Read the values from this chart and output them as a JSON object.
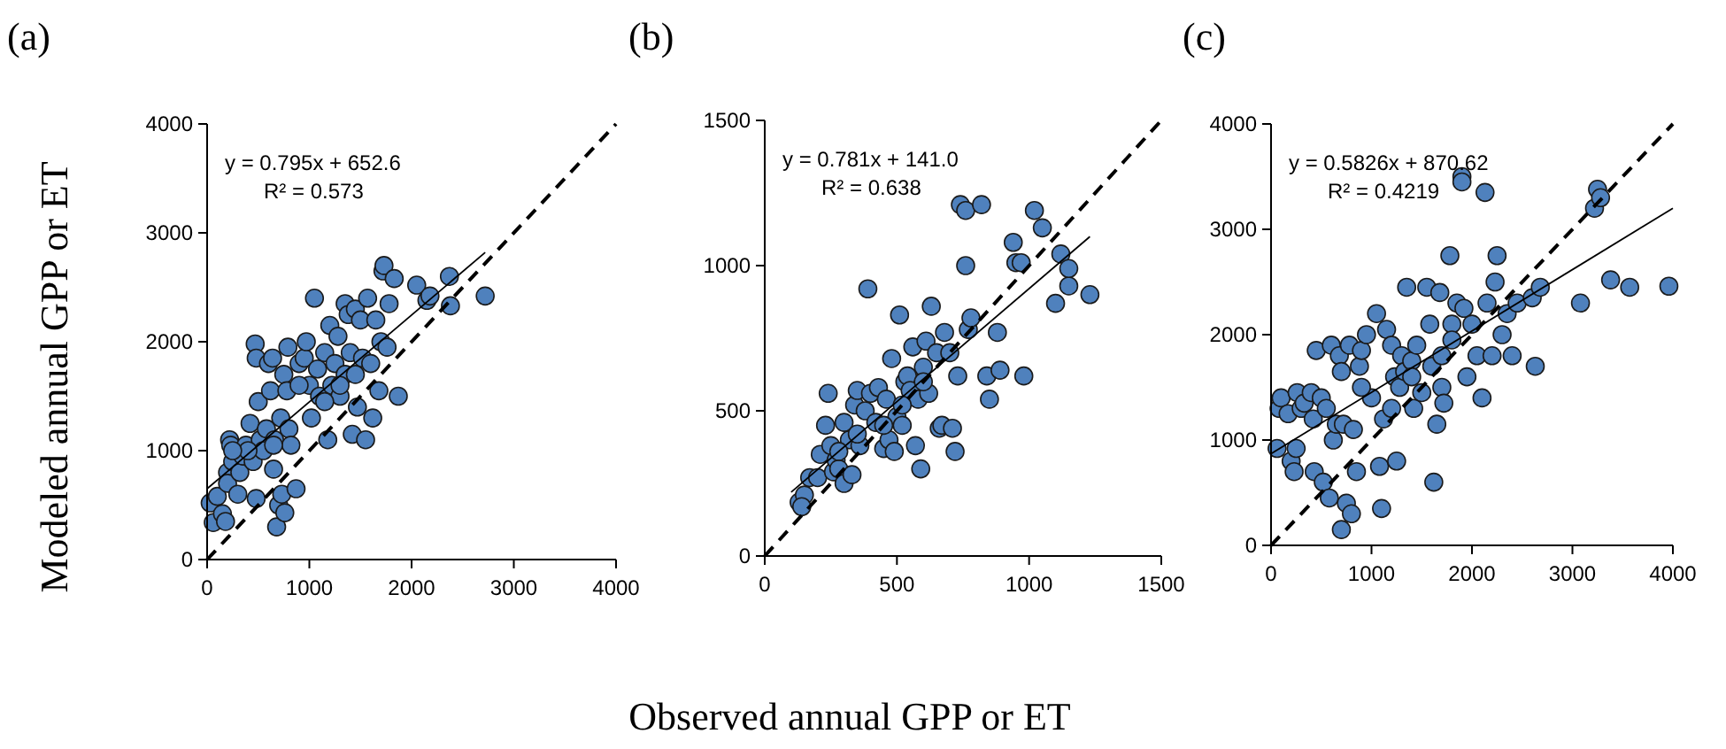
{
  "chart_data": [
    {
      "type": "scatter",
      "title": "(a)",
      "ylabel": "Modeled annual GPP or ET",
      "xlim": [
        0,
        4000
      ],
      "ylim": [
        0,
        4000
      ],
      "xticks": [
        0,
        1000,
        2000,
        3000,
        4000
      ],
      "yticks": [
        0,
        1000,
        2000,
        3000,
        4000
      ],
      "grid": false,
      "annotations": [
        "y = 0.795x + 652.6",
        "R² = 0.573"
      ],
      "series": [
        {
          "type": "scatter",
          "color": "#4f81bd",
          "marker": "circle",
          "x": [
            30,
            100,
            60,
            150,
            180,
            200,
            220,
            230,
            250,
            200,
            300,
            320,
            350,
            380,
            420,
            450,
            470,
            480,
            500,
            480,
            520,
            550,
            580,
            600,
            620,
            640,
            650,
            660,
            680,
            700,
            720,
            730,
            750,
            760,
            780,
            790,
            800,
            820,
            870,
            900,
            950,
            970,
            1000,
            1020,
            1050,
            1080,
            1100,
            1150,
            1180,
            1200,
            1220,
            1250,
            1280,
            1300,
            1350,
            1350,
            1380,
            1400,
            1420,
            1450,
            1450,
            1470,
            1500,
            1520,
            1550,
            1570,
            1600,
            1620,
            1650,
            1680,
            1700,
            1720,
            1730,
            1760,
            1780,
            1830,
            1870,
            2050,
            2150,
            2180,
            2370,
            2380,
            2720,
            1300,
            1150,
            900,
            650,
            400,
            250
          ],
          "values": [
            520,
            580,
            340,
            420,
            350,
            800,
            1100,
            1050,
            900,
            700,
            600,
            800,
            950,
            1050,
            1250,
            900,
            1980,
            1850,
            1450,
            560,
            1100,
            1000,
            1200,
            1800,
            1550,
            1850,
            830,
            1100,
            300,
            500,
            1300,
            600,
            1700,
            430,
            1550,
            1950,
            1200,
            1050,
            650,
            1800,
            1850,
            2000,
            1600,
            1300,
            2400,
            1750,
            1500,
            1900,
            1100,
            2150,
            1600,
            1800,
            2050,
            1500,
            2350,
            1700,
            2250,
            1900,
            1150,
            2300,
            1700,
            1400,
            2200,
            1850,
            1100,
            2400,
            1800,
            1300,
            2200,
            1550,
            2000,
            2650,
            2700,
            1950,
            2350,
            2580,
            1500,
            2520,
            2380,
            2420,
            2600,
            2330,
            2420,
            1600,
            1450,
            1600,
            1050,
            1000,
            1000
          ]
        },
        {
          "type": "line",
          "color": "#000000",
          "line_style": "solid",
          "x": [
            0,
            2720
          ],
          "values": [
            650,
            2820
          ]
        },
        {
          "type": "line",
          "color": "#000000",
          "line_style": "dashed",
          "x": [
            0,
            4000
          ],
          "values": [
            0,
            4000
          ]
        }
      ]
    },
    {
      "type": "scatter",
      "title": "(b)",
      "xlabel": "Observed annual GPP or ET",
      "xlim": [
        0,
        1500
      ],
      "ylim": [
        0,
        1500
      ],
      "xticks": [
        0,
        500,
        1000,
        1500
      ],
      "yticks": [
        0,
        500,
        1000,
        1500
      ],
      "grid": false,
      "annotations": [
        "y = 0.781x + 141.0",
        "R² = 0.638"
      ],
      "series": [
        {
          "type": "scatter",
          "color": "#4f81bd",
          "marker": "circle",
          "x": [
            130,
            150,
            140,
            170,
            200,
            210,
            230,
            240,
            250,
            260,
            270,
            280,
            300,
            300,
            320,
            330,
            340,
            350,
            360,
            380,
            390,
            400,
            420,
            430,
            450,
            460,
            470,
            480,
            490,
            500,
            510,
            520,
            530,
            540,
            550,
            560,
            570,
            580,
            590,
            600,
            610,
            620,
            630,
            650,
            660,
            670,
            680,
            700,
            710,
            720,
            730,
            740,
            760,
            760,
            770,
            780,
            820,
            840,
            850,
            880,
            890,
            980,
            940,
            950,
            970,
            1020,
            1050,
            1100,
            1120,
            1150,
            1150,
            1230,
            450,
            350,
            280,
            520,
            600
          ],
          "values": [
            185,
            210,
            170,
            270,
            270,
            350,
            450,
            560,
            380,
            290,
            330,
            300,
            250,
            460,
            400,
            280,
            520,
            570,
            380,
            500,
            920,
            560,
            460,
            580,
            370,
            540,
            400,
            680,
            360,
            480,
            830,
            450,
            600,
            620,
            570,
            720,
            380,
            540,
            300,
            650,
            740,
            560,
            860,
            700,
            440,
            450,
            770,
            700,
            440,
            360,
            620,
            1210,
            1190,
            1000,
            780,
            820,
            1210,
            620,
            540,
            770,
            640,
            620,
            1080,
            1010,
            1010,
            1190,
            1130,
            870,
            1040,
            930,
            990,
            900,
            450,
            420,
            360,
            520,
            600
          ]
        },
        {
          "type": "line",
          "color": "#000000",
          "line_style": "solid",
          "x": [
            100,
            1230
          ],
          "values": [
            220,
            1100
          ]
        },
        {
          "type": "line",
          "color": "#000000",
          "line_style": "dashed",
          "x": [
            0,
            1500
          ],
          "values": [
            0,
            1500
          ]
        }
      ]
    },
    {
      "type": "scatter",
      "title": "(c)",
      "xlim": [
        0,
        4000
      ],
      "ylim": [
        0,
        4000
      ],
      "xticks": [
        0,
        1000,
        2000,
        3000,
        4000
      ],
      "yticks": [
        0,
        1000,
        2000,
        3000,
        4000
      ],
      "grid": false,
      "annotations": [
        "y = 0.5826x + 870.62",
        "R² = 0.4219"
      ],
      "series": [
        {
          "type": "scatter",
          "color": "#4f81bd",
          "marker": "circle",
          "x": [
            60,
            80,
            100,
            170,
            200,
            230,
            250,
            260,
            300,
            330,
            400,
            420,
            430,
            450,
            500,
            520,
            550,
            580,
            600,
            620,
            650,
            680,
            700,
            700,
            720,
            750,
            780,
            800,
            820,
            850,
            880,
            900,
            950,
            1000,
            1050,
            1080,
            1100,
            1120,
            1150,
            1200,
            1230,
            1250,
            1280,
            1300,
            1330,
            1350,
            1400,
            1420,
            1450,
            1500,
            1550,
            1580,
            1600,
            1620,
            1650,
            1680,
            1700,
            1720,
            1780,
            1800,
            1850,
            1900,
            1900,
            1920,
            1950,
            2000,
            2050,
            2100,
            2130,
            2150,
            2200,
            2230,
            2250,
            2300,
            2350,
            2400,
            2450,
            2600,
            2630,
            2680,
            3080,
            3220,
            3250,
            3280,
            3380,
            3570,
            3960,
            1700,
            1800,
            1400,
            1200,
            900
          ],
          "values": [
            920,
            1300,
            1400,
            1250,
            800,
            700,
            920,
            1450,
            1300,
            1350,
            1450,
            1200,
            700,
            1850,
            1400,
            600,
            1300,
            450,
            1900,
            1000,
            1150,
            1800,
            1650,
            150,
            1150,
            400,
            1900,
            300,
            1100,
            700,
            1700,
            1850,
            2000,
            1400,
            2200,
            750,
            350,
            1200,
            2050,
            1900,
            1600,
            800,
            1500,
            1800,
            1650,
            2450,
            1750,
            1300,
            1900,
            1450,
            2450,
            2100,
            1700,
            600,
            1150,
            2400,
            1500,
            1350,
            2750,
            2100,
            2300,
            3500,
            3450,
            2250,
            1600,
            2100,
            1800,
            1400,
            3350,
            2300,
            1800,
            2500,
            2750,
            2000,
            2200,
            1800,
            2300,
            2350,
            1700,
            2450,
            2300,
            3200,
            3380,
            3300,
            2520,
            2450,
            2460,
            1800,
            1950,
            1600,
            1300,
            1500
          ]
        },
        {
          "type": "line",
          "color": "#000000",
          "line_style": "solid",
          "x": [
            0,
            4000
          ],
          "values": [
            870,
            3200
          ]
        },
        {
          "type": "line",
          "color": "#000000",
          "line_style": "dashed",
          "x": [
            0,
            4000
          ],
          "values": [
            0,
            4000
          ]
        }
      ]
    }
  ]
}
